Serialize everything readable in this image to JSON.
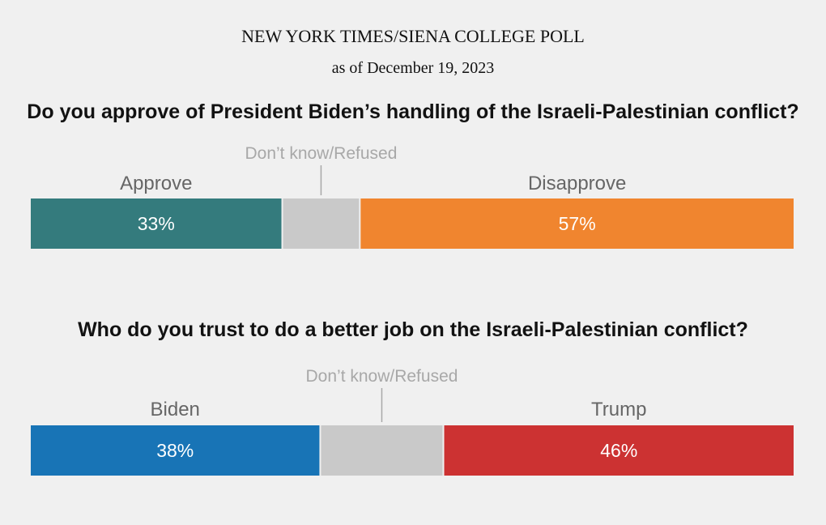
{
  "header": {
    "title": "NEW YORK TIMES/SIENA COLLEGE POLL",
    "subtitle": "as of December 19, 2023"
  },
  "chart_data": [
    {
      "type": "bar",
      "orientation": "horizontal-stacked",
      "title": "Do you approve of President Biden’s handling of the Israeli-Palestinian conflict?",
      "xlim": [
        0,
        100
      ],
      "segments": [
        {
          "name": "Approve",
          "value": 33,
          "label": "33%",
          "color": "#347b7d"
        },
        {
          "name": "Don’t know/Refused",
          "value": 10,
          "label": "",
          "color": "#c9c9c9"
        },
        {
          "name": "Disapprove",
          "value": 57,
          "label": "57%",
          "color": "#f0852f"
        }
      ]
    },
    {
      "type": "bar",
      "orientation": "horizontal-stacked",
      "title": "Who do you trust to do a better job on the Israeli-Palestinian conflict?",
      "xlim": [
        0,
        100
      ],
      "segments": [
        {
          "name": "Biden",
          "value": 38,
          "label": "38%",
          "color": "#1874b6"
        },
        {
          "name": "Don’t know/Refused",
          "value": 16,
          "label": "",
          "color": "#c9c9c9"
        },
        {
          "name": "Trump",
          "value": 46,
          "label": "46%",
          "color": "#cc3232"
        }
      ]
    }
  ]
}
